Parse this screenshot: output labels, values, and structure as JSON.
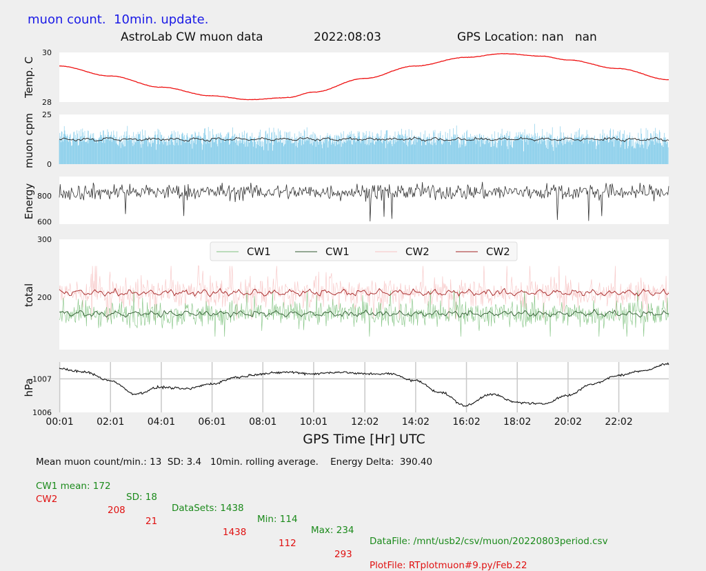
{
  "header": {
    "title": "muon count.  10min. update.",
    "chart_title": "AstroLab CW muon data",
    "date": "2022:08:03",
    "gps_location": "GPS Location: nan   nan"
  },
  "footer": {
    "line1": "Mean muon count/min.: 13  SD: 3.4   10min. rolling average.    Energy Delta:  390.40",
    "cw1": {
      "label": "CW1 mean: 172",
      "sd": "SD: 18",
      "datasets": "DataSets: 1438",
      "min": "Min: 114",
      "max": "Max: 234",
      "file": "DataFile: /mnt/usb2/csv/muon/20220803period.csv"
    },
    "cw2": {
      "label": "CW2",
      "mean": "208",
      "sd": "21",
      "datasets": "1438",
      "min": "112",
      "max": "293",
      "file": "PlotFile: RTplotmuon#9.py/Feb.22"
    }
  },
  "colors": {
    "temp_line": "#ee1111",
    "muon_bars": "#87cdea",
    "muon_avg": "#222222",
    "energy_line": "#333333",
    "cw1_raw": "#7fc27f",
    "cw1_avg": "#2f5a2f",
    "cw2_raw": "#f7c3c3",
    "cw2_avg": "#a32222",
    "pressure_line": "#111111",
    "grid": "#c8c8c8"
  },
  "chart_data": [
    {
      "id": "temperature",
      "type": "line",
      "ylabel": "Temp. C",
      "yticks": [
        "28",
        "30"
      ],
      "ylim": [
        28,
        30
      ],
      "series": [
        {
          "x": [
            0,
            2,
            4,
            6,
            7.5,
            9,
            10,
            12,
            14,
            16,
            17.5,
            19,
            20,
            22,
            24
          ],
          "values": [
            29.45,
            29.05,
            28.6,
            28.25,
            28.1,
            28.18,
            28.4,
            28.95,
            29.45,
            29.8,
            29.95,
            29.85,
            29.7,
            29.35,
            28.9
          ]
        }
      ]
    },
    {
      "id": "muon_cpm",
      "type": "bar",
      "ylabel": "muon cpm",
      "yticks": [
        "0",
        "25"
      ],
      "ylim": [
        0,
        25
      ],
      "mean": 13,
      "sd": 3.4,
      "series": [
        {
          "name": "",
          "rolling_average": 12.5
        }
      ]
    },
    {
      "id": "energy",
      "type": "line",
      "ylabel": "Energy",
      "yticks": [
        "600",
        "800"
      ],
      "ylim": [
        580,
        950
      ],
      "mean": 830,
      "range": [
        600,
        940
      ]
    },
    {
      "id": "total",
      "type": "line",
      "ylabel": "total",
      "yticks": [
        "200",
        "300"
      ],
      "ylim": [
        110,
        300
      ],
      "legend": [
        "CW1",
        "CW1",
        "CW2",
        "CW2"
      ],
      "legend_position": "top-center",
      "series": [
        {
          "name": "CW1",
          "mean": 172,
          "sd": 18,
          "min": 114,
          "max": 234,
          "kind": "raw"
        },
        {
          "name": "CW1",
          "mean": 172,
          "kind": "rolling"
        },
        {
          "name": "CW2",
          "mean": 208,
          "sd": 21,
          "min": 112,
          "max": 293,
          "kind": "raw"
        },
        {
          "name": "CW2",
          "mean": 208,
          "kind": "rolling"
        }
      ]
    },
    {
      "id": "pressure",
      "type": "line",
      "ylabel": "hPa",
      "yticks": [
        "1006",
        "1007"
      ],
      "ylim": [
        1006,
        1007.5
      ],
      "grid": true,
      "series": [
        {
          "x": [
            0,
            1,
            2,
            3,
            4,
            5,
            6,
            7,
            8,
            9,
            10,
            11,
            12,
            13,
            14,
            15,
            16,
            17,
            18,
            19,
            20,
            21,
            22,
            23,
            24
          ],
          "values": [
            1007.3,
            1007.2,
            1006.95,
            1006.55,
            1006.75,
            1006.7,
            1006.85,
            1007.05,
            1007.15,
            1007.2,
            1007.15,
            1007.2,
            1007.15,
            1007.15,
            1006.95,
            1006.6,
            1006.2,
            1006.55,
            1006.3,
            1006.25,
            1006.5,
            1006.85,
            1007.1,
            1007.25,
            1007.45
          ]
        }
      ]
    }
  ],
  "x_axis": {
    "label": "GPS Time  [Hr] UTC",
    "ticks": [
      {
        "hour": 0.0167,
        "label": "00:01"
      },
      {
        "hour": 2.0167,
        "label": "02:01"
      },
      {
        "hour": 4.0167,
        "label": "04:01"
      },
      {
        "hour": 6.0167,
        "label": "06:01"
      },
      {
        "hour": 8.0167,
        "label": "08:01"
      },
      {
        "hour": 10.0167,
        "label": "10:01"
      },
      {
        "hour": 12.0333,
        "label": "12:02"
      },
      {
        "hour": 14.0333,
        "label": "14:02"
      },
      {
        "hour": 16.0333,
        "label": "16:02"
      },
      {
        "hour": 18.0333,
        "label": "18:02"
      },
      {
        "hour": 20.0333,
        "label": "20:02"
      },
      {
        "hour": 22.0333,
        "label": "22:02"
      }
    ],
    "range": [
      0,
      24
    ]
  }
}
